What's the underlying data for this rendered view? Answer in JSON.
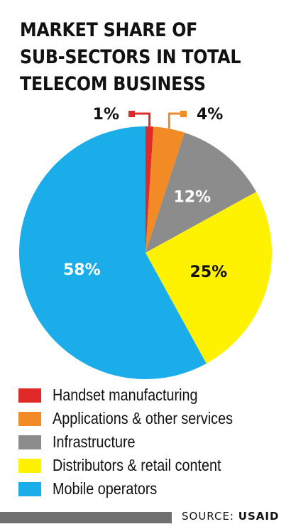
{
  "title_lines": [
    "MARKET SHARE OF",
    "SUB-SECTORS IN TOTAL",
    "TELECOM BUSINESS"
  ],
  "chart_data": {
    "type": "pie",
    "title": "MARKET SHARE OF SUB-SECTORS IN TOTAL TELECOM BUSINESS",
    "categories": [
      "Handset manufacturing",
      "Applications & other services",
      "Infrastructure",
      "Distributors & retail content",
      "Mobile operators"
    ],
    "values": [
      1,
      4,
      12,
      25,
      58
    ],
    "value_labels": [
      "1%",
      "4%",
      "12%",
      "25%",
      "58%"
    ],
    "colors": [
      "#e02a2a",
      "#f28a25",
      "#8c8c8c",
      "#fff200",
      "#1badea"
    ],
    "label_colors": [
      "#111111",
      "#111111",
      "#ffffff",
      "#111111",
      "#ffffff"
    ],
    "legend_placement": "bottom"
  },
  "source": {
    "label": "SOURCE:",
    "value": "USAID"
  }
}
